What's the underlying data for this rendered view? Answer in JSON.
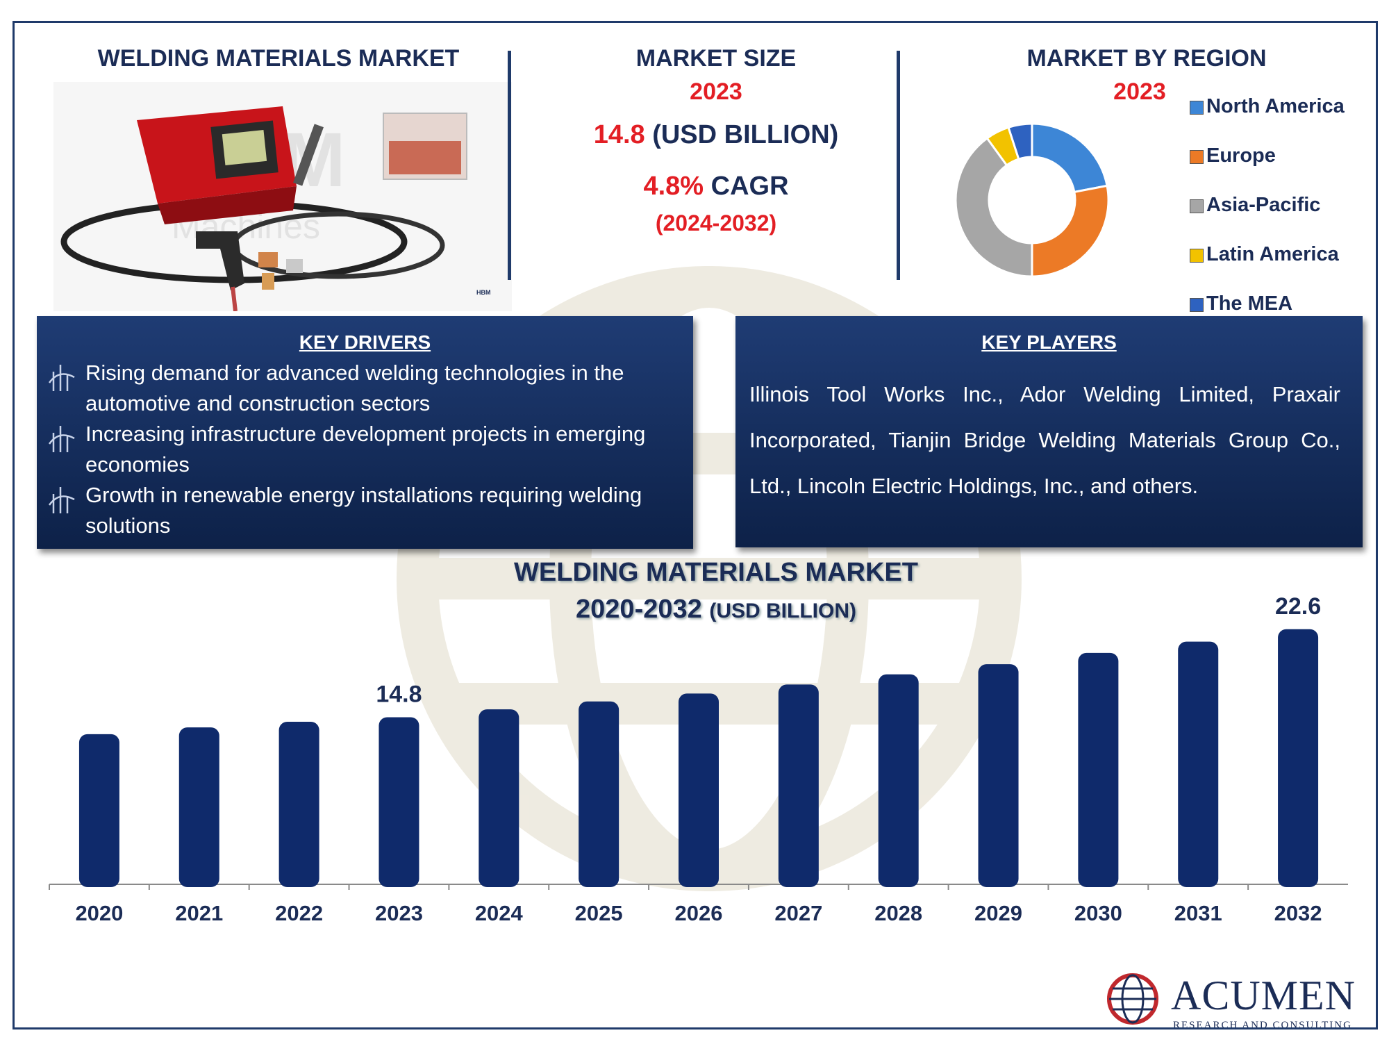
{
  "header": {
    "left_title": "WELDING MATERIALS MARKET",
    "size_title": "MARKET SIZE",
    "size_year": "2023",
    "size_value": "14.8",
    "size_unit": " (USD BILLION)",
    "cagr_value": "4.8%",
    "cagr_label": " CAGR",
    "cagr_period": "(2024-2032)",
    "region_title": "MARKET BY REGION",
    "region_year": "2023"
  },
  "product_image": {
    "watermark_text": "HBM",
    "watermark_sub": "Machines",
    "tag": "HBM"
  },
  "regions": [
    {
      "name": "North America",
      "share": 22,
      "color": "#3d86d6"
    },
    {
      "name": "Europe",
      "share": 28,
      "color": "#ec7a26"
    },
    {
      "name": "Asia-Pacific",
      "share": 40,
      "color": "#a6a6a6"
    },
    {
      "name": "Latin America",
      "share": 5,
      "color": "#f2c200"
    },
    {
      "name": "The MEA",
      "share": 5,
      "color": "#2e62c0"
    }
  ],
  "key_drivers": {
    "title": "KEY DRIVERS",
    "items": [
      "Rising demand for advanced welding technologies in the automotive and construction sectors",
      "Increasing infrastructure development projects in emerging economies",
      "Growth in renewable energy installations requiring welding solutions"
    ]
  },
  "key_players": {
    "title": "KEY PLAYERS",
    "text": "Illinois Tool Works Inc., Ador Welding Limited, Praxair Incorporated, Tianjin Bridge Welding Materials Group Co., Ltd., Lincoln Electric Holdings, Inc., and others."
  },
  "chart_data": {
    "type": "bar",
    "title": "WELDING MATERIALS MARKET",
    "subtitle_years": "2020-2032",
    "subtitle_unit": "(USD BILLION)",
    "categories": [
      "2020",
      "2021",
      "2022",
      "2023",
      "2024",
      "2025",
      "2026",
      "2027",
      "2028",
      "2029",
      "2030",
      "2031",
      "2032"
    ],
    "values": [
      13.3,
      13.9,
      14.4,
      14.8,
      15.5,
      16.2,
      16.9,
      17.7,
      18.6,
      19.5,
      20.5,
      21.5,
      22.6
    ],
    "data_labels": {
      "2023": "14.8",
      "2032": "22.6"
    },
    "bar_color": "#0f2a6b",
    "ylim": [
      0,
      24
    ],
    "grid": false
  },
  "logo": {
    "name": "ACUMEN",
    "sub": "RESEARCH AND CONSULTING"
  }
}
